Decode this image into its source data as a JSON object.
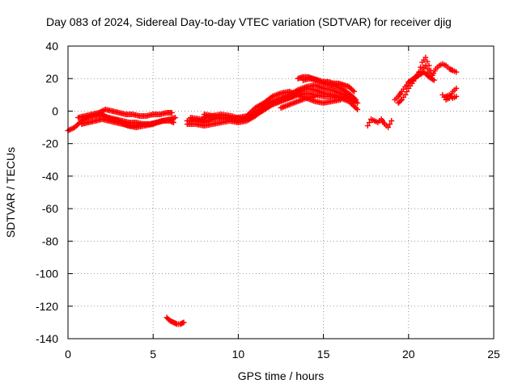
{
  "chart_data": {
    "type": "scatter",
    "title": "Day 083 of 2024, Sidereal Day-to-day VTEC variation (SDTVAR) for receiver djig",
    "xlabel": "GPS time / hours",
    "ylabel": "SDTVAR / TECUs",
    "xlim": [
      0,
      25
    ],
    "ylim": [
      -140,
      40
    ],
    "xticks": [
      0,
      5,
      10,
      15,
      20,
      25
    ],
    "yticks": [
      -140,
      -120,
      -100,
      -80,
      -60,
      -40,
      -20,
      0,
      20,
      40
    ],
    "grid": true,
    "marker": "+",
    "color": "#ff0000",
    "series": [
      {
        "name": "SDTVAR",
        "segments": [
          {
            "x": [
              0.0,
              0.4,
              0.8,
              1.2,
              1.6,
              2.0,
              2.4,
              2.8,
              3.2,
              3.6,
              4.0,
              4.4,
              4.8,
              5.2,
              5.6,
              6.0,
              6.2
            ],
            "y": [
              -12,
              -10,
              -6,
              -4,
              -3,
              -3,
              -4,
              -5,
              -6,
              -7,
              -7,
              -8,
              -8,
              -7,
              -6,
              -6,
              -7
            ]
          },
          {
            "x": [
              0.6,
              1.0,
              1.4,
              1.8,
              2.2,
              2.6,
              3.0,
              3.4,
              3.8,
              4.2,
              4.6,
              5.0,
              5.4,
              5.8,
              6.1
            ],
            "y": [
              -4,
              -3,
              -2,
              -1,
              1,
              0,
              -1,
              -2,
              -2,
              -3,
              -3,
              -2,
              -2,
              -1,
              -1
            ]
          },
          {
            "x": [
              0.8,
              1.2,
              1.6,
              2.0,
              2.4,
              2.8,
              3.2,
              3.6,
              4.0,
              4.4,
              4.8,
              5.2,
              5.6,
              6.0
            ],
            "y": [
              -8,
              -7,
              -6,
              -5,
              -6,
              -7,
              -8,
              -9,
              -9,
              -8,
              -8,
              -7,
              -6,
              -5
            ]
          },
          {
            "x": [
              2.0,
              2.5,
              3.0,
              3.5,
              4.0,
              4.5,
              5.0,
              5.5,
              6.0,
              6.3
            ],
            "y": [
              -2,
              -5,
              -6,
              -9,
              -10,
              -9,
              -8,
              -6,
              -5,
              -4
            ]
          },
          {
            "x": [
              5.8,
              6.0,
              6.2,
              6.4,
              6.6,
              6.8
            ],
            "y": [
              -127,
              -129,
              -130,
              -131,
              -131,
              -130
            ]
          },
          {
            "x": [
              7.0,
              7.5,
              8.0,
              8.5,
              9.0,
              9.5,
              10.0,
              10.5,
              11.0,
              11.5,
              12.0,
              12.5,
              13.0,
              13.5,
              14.0,
              14.5,
              15.0,
              15.5,
              16.0,
              16.5,
              17.0
            ],
            "y": [
              -6,
              -6,
              -7,
              -5,
              -4,
              -4,
              -6,
              -4,
              -1,
              3,
              6,
              8,
              10,
              13,
              15,
              16,
              14,
              13,
              11,
              9,
              5
            ]
          },
          {
            "x": [
              7.0,
              7.5,
              8.0,
              8.5,
              9.0,
              9.5,
              10.0,
              10.5,
              11.0,
              11.5,
              12.0,
              12.5,
              13.0,
              13.5,
              14.0,
              14.5,
              15.0,
              15.5,
              16.0,
              16.5,
              17.0
            ],
            "y": [
              -8,
              -8,
              -9,
              -8,
              -7,
              -6,
              -7,
              -6,
              -3,
              1,
              4,
              6,
              8,
              10,
              11,
              10,
              9,
              9,
              8,
              6,
              1
            ]
          },
          {
            "x": [
              7.2,
              7.8,
              8.4,
              9.0,
              9.6,
              10.2,
              10.8,
              11.4,
              12.0,
              12.6,
              13.2,
              13.6,
              14.0,
              14.5,
              15.0,
              15.5,
              16.0,
              16.5,
              16.8
            ],
            "y": [
              -4,
              -5,
              -3,
              -2,
              -3,
              -5,
              -3,
              0,
              4,
              7,
              9,
              12,
              14,
              13,
              11,
              10,
              9,
              8,
              6
            ]
          },
          {
            "x": [
              8.0,
              8.5,
              9.0,
              9.5,
              10.0,
              10.5,
              11.0,
              11.5,
              12.0,
              12.5,
              13.0,
              13.5,
              14.0,
              14.5,
              15.0,
              15.5,
              16.0
            ],
            "y": [
              -2,
              -3,
              -4,
              -5,
              -4,
              -3,
              2,
              5,
              9,
              11,
              12,
              10,
              8,
              6,
              5,
              6,
              7
            ]
          },
          {
            "x": [
              13.5,
              13.8,
              14.1,
              14.4,
              14.7,
              15.0,
              15.3,
              15.6,
              15.9,
              16.2,
              16.5,
              16.8
            ],
            "y": [
              20,
              21,
              21,
              20,
              19,
              18,
              18,
              17,
              17,
              16,
              15,
              12
            ]
          },
          {
            "x": [
              13.8,
              14.2,
              14.6,
              15.0,
              15.4,
              15.8,
              16.2,
              16.6,
              16.9
            ],
            "y": [
              19,
              20,
              19,
              17,
              16,
              15,
              13,
              10,
              7
            ]
          },
          {
            "x": [
              12.5,
              13.0,
              13.5,
              14.0,
              14.5
            ],
            "y": [
              2,
              4,
              6,
              8,
              9
            ]
          },
          {
            "x": [
              17.6,
              17.8,
              18.0,
              18.2,
              18.4,
              18.6,
              18.8,
              19.0
            ],
            "y": [
              -9,
              -5,
              -6,
              -7,
              -5,
              -8,
              -10,
              -6
            ]
          },
          {
            "x": [
              19.2,
              19.4,
              19.6,
              19.8,
              20.0,
              20.2,
              20.4,
              20.6,
              20.8,
              21.0,
              21.2,
              21.4,
              21.6,
              21.8,
              22.0,
              22.2,
              22.4,
              22.6,
              22.8
            ],
            "y": [
              7,
              9,
              12,
              15,
              17,
              19,
              21,
              23,
              26,
              28,
              24,
              22,
              26,
              28,
              29,
              28,
              26,
              25,
              24
            ]
          },
          {
            "x": [
              19.4,
              19.6,
              19.8,
              20.0,
              20.2,
              20.4,
              20.6,
              20.8,
              21.0,
              21.2,
              21.4
            ],
            "y": [
              5,
              7,
              10,
              14,
              17,
              20,
              24,
              30,
              33,
              28,
              22
            ]
          },
          {
            "x": [
              20.0,
              20.3,
              20.6,
              20.9,
              21.2,
              21.5
            ],
            "y": [
              18,
              20,
              22,
              24,
              21,
              19
            ]
          },
          {
            "x": [
              22.0,
              22.2,
              22.4,
              22.6,
              22.8
            ],
            "y": [
              10,
              7,
              8,
              12,
              14
            ]
          },
          {
            "x": [
              22.2,
              22.4,
              22.6,
              22.8
            ],
            "y": [
              9,
              10,
              8,
              9
            ]
          }
        ]
      }
    ]
  }
}
